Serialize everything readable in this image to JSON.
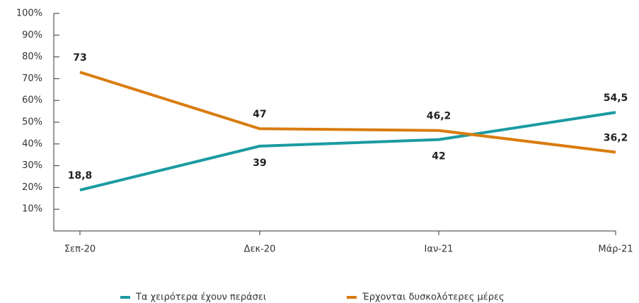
{
  "chart_data": {
    "type": "line",
    "categories": [
      "Σεπ-20",
      "Δεκ-20",
      "Ιαν-21",
      "Μάρ-21"
    ],
    "series": [
      {
        "name": "Τα χειρότερα έχουν περάσει",
        "color": "#1a9ba1",
        "values": [
          18.8,
          39,
          42,
          54.5
        ],
        "value_labels": [
          "18,8",
          "39",
          "42",
          "54,5"
        ]
      },
      {
        "name": "Έρχονται δυσκολότερες μέρες",
        "color": "#d97c0f",
        "values": [
          73,
          47,
          46.2,
          36.2
        ],
        "value_labels": [
          "73",
          "47",
          "46,2",
          "36,2"
        ]
      }
    ],
    "ylim": [
      0,
      100
    ],
    "yticks": [
      {
        "value": 10,
        "label": "10%"
      },
      {
        "value": 20,
        "label": "20%"
      },
      {
        "value": 30,
        "label": "30%"
      },
      {
        "value": 40,
        "label": "40%"
      },
      {
        "value": 50,
        "label": "50%"
      },
      {
        "value": 60,
        "label": "60%"
      },
      {
        "value": 70,
        "label": "70%"
      },
      {
        "value": 80,
        "label": "80%"
      },
      {
        "value": 90,
        "label": "90%"
      },
      {
        "value": 100,
        "label": "100%"
      }
    ],
    "legend": "bottom"
  }
}
